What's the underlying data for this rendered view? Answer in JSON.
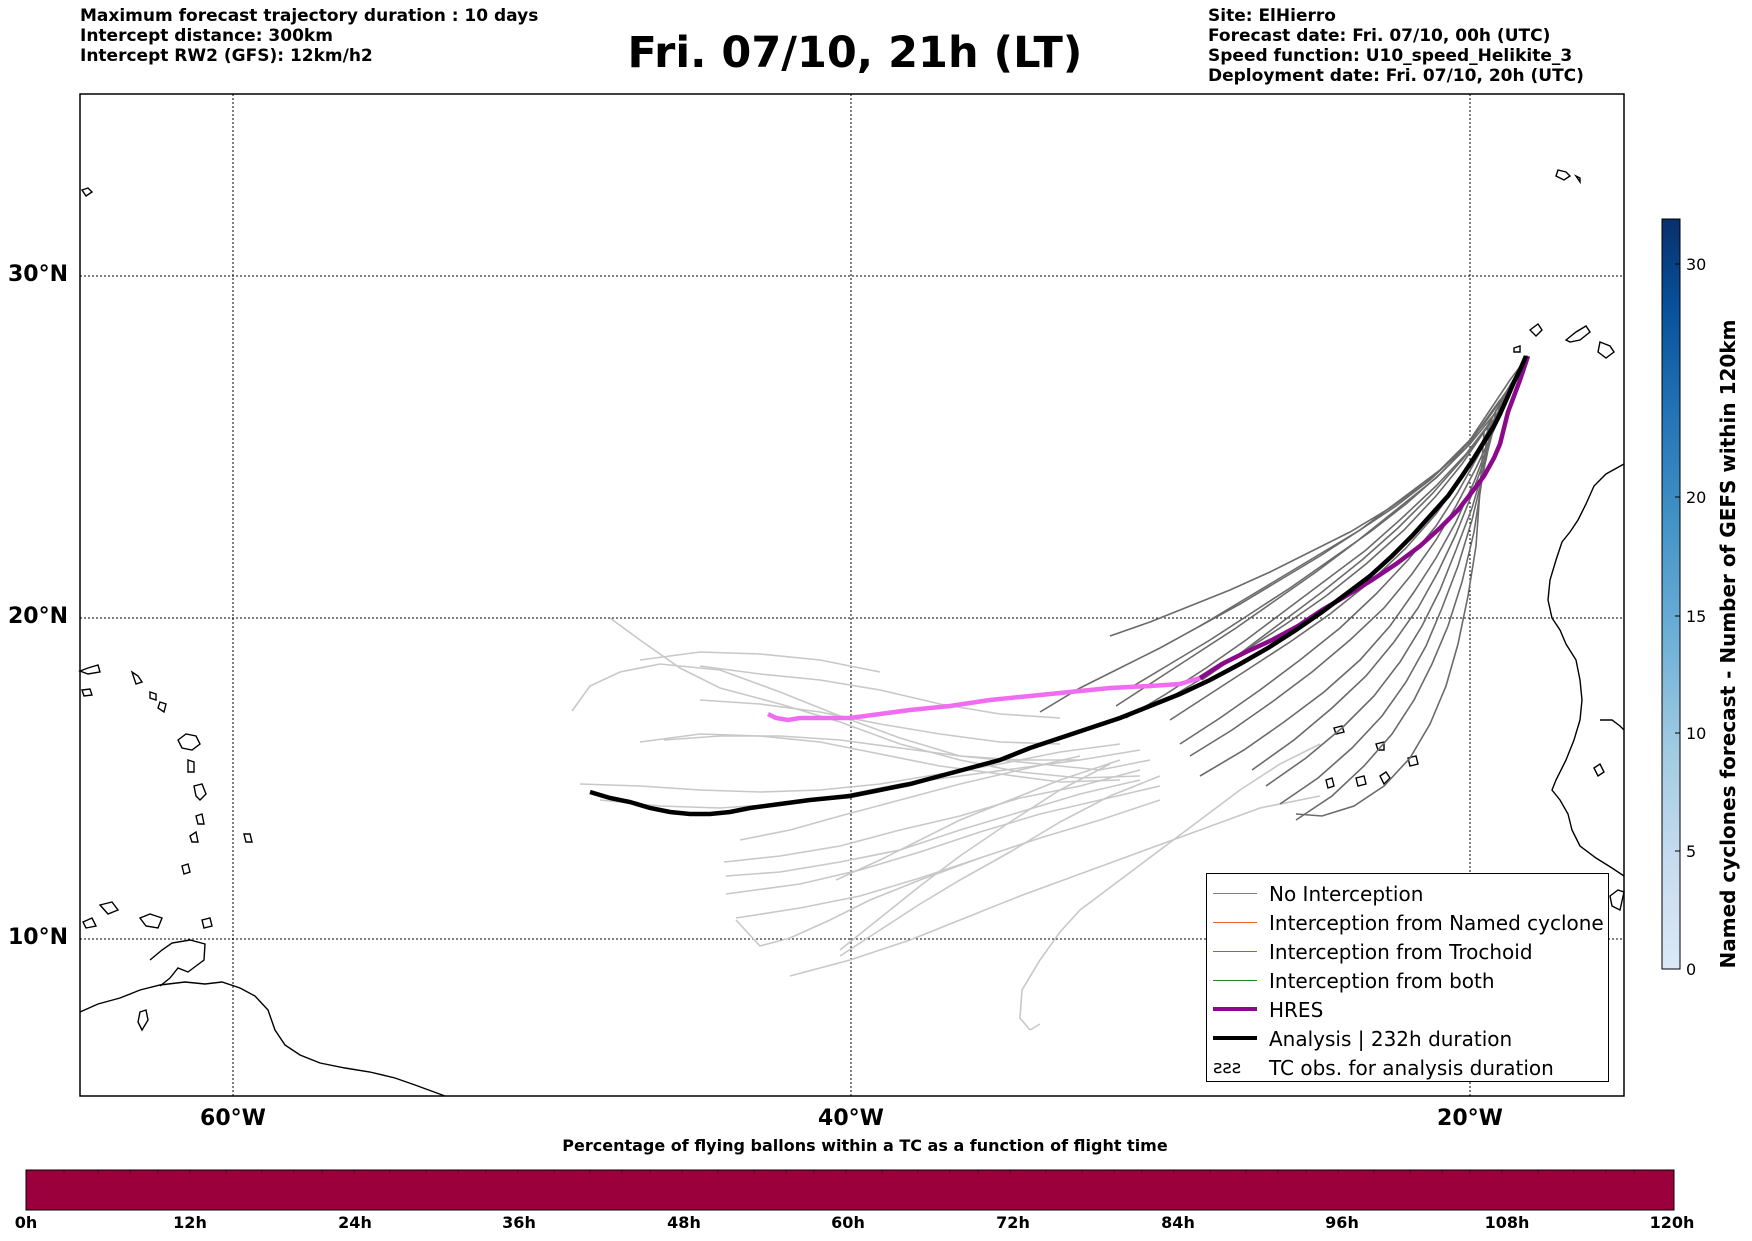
{
  "header": {
    "left": [
      "Maximum forecast trajectory duration : 10 days",
      "Intercept distance: 300km",
      "Intercept RW2 (GFS):  12km/h2"
    ],
    "title": "Fri. 07/10, 21h (LT)",
    "right": [
      "Site: ElHierro",
      "Forecast date: Fri. 07/10, 00h (UTC)",
      "Speed function: U10_speed_Helikite_3",
      "Deployment date: Fri. 07/10, 20h (UTC)"
    ]
  },
  "map": {
    "lat_labels": [
      "30°N",
      "20°N",
      "10°N"
    ],
    "lon_labels": [
      "60°W",
      "40°W",
      "20°W"
    ],
    "grid_lines": "dotted"
  },
  "legend": {
    "items": [
      {
        "label": "No Interception",
        "color": "#808080",
        "style": "thin"
      },
      {
        "label": "Interception from Named cyclone",
        "color": "#e8622a",
        "style": "thin"
      },
      {
        "label": "Interception from Trochoid",
        "color": "#808000",
        "style": "thin"
      },
      {
        "label": "Interception from both",
        "color": "#228b22",
        "style": "thin"
      },
      {
        "label": "HRES",
        "color": "#8b0a8b",
        "style": "thick"
      },
      {
        "label": "Analysis | 232h duration",
        "color": "#000000",
        "style": "thick"
      },
      {
        "label": "TC obs. for analysis duration",
        "color": "#000000",
        "style": "symbol"
      }
    ],
    "tc_symbol": "ƨƨƨ"
  },
  "colorbar": {
    "title": "Named cyclones forecast - Number of GEFS within 120km",
    "ticks": [
      "0",
      "5",
      "10",
      "15",
      "20",
      "30"
    ],
    "colors": [
      "#dbe9f6",
      "#c6dbef",
      "#9ecae1",
      "#6baed6",
      "#4292c6",
      "#2171b5",
      "#08519c",
      "#08306b"
    ]
  },
  "pct_bar": {
    "title": "Percentage of flying ballons within a TC as a function of flight time",
    "ticks": [
      "0h",
      "12h",
      "24h",
      "36h",
      "48h",
      "60h",
      "72h",
      "84h",
      "96h",
      "108h",
      "120h"
    ],
    "color": "#9c003c"
  }
}
